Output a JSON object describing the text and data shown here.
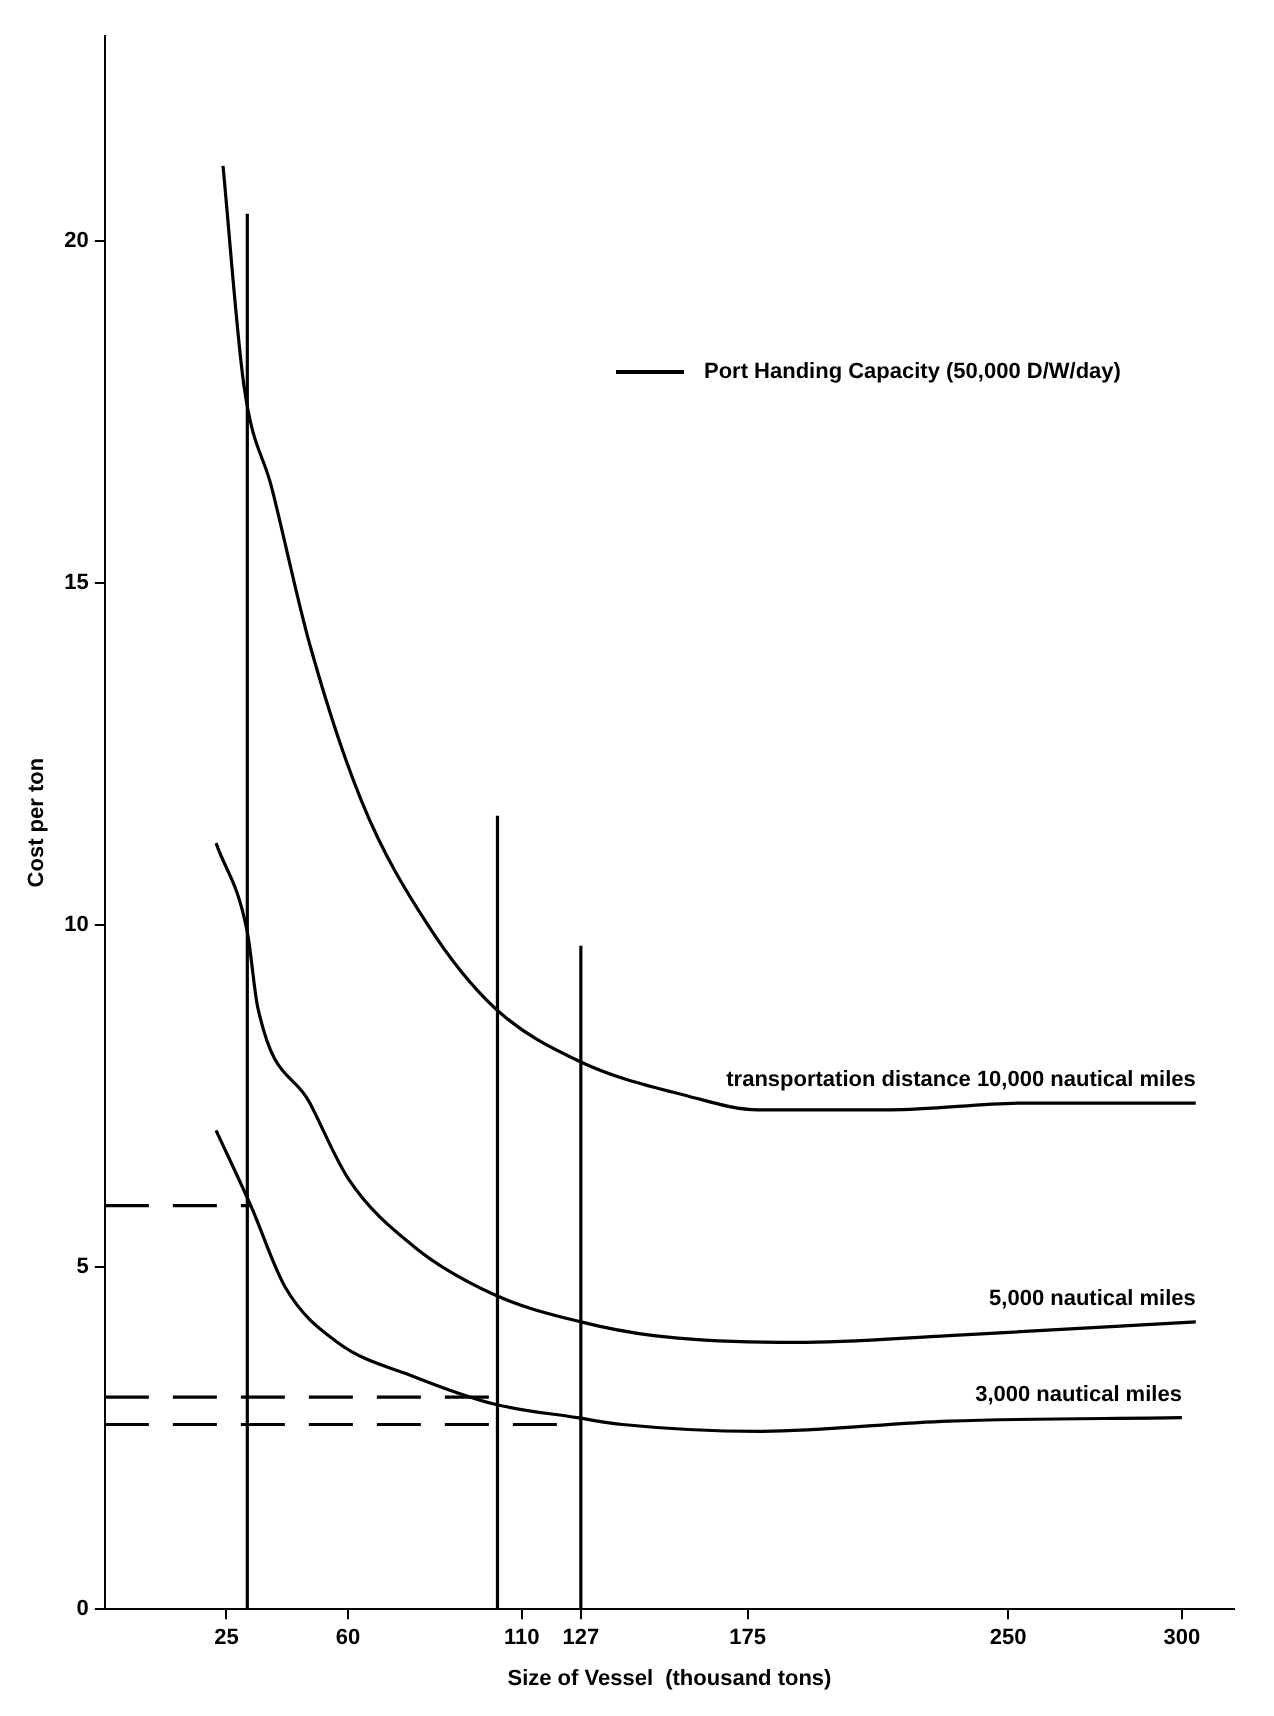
{
  "chart_data": {
    "type": "line",
    "xlabel": "Size of Vessel  (thousand tons)",
    "ylabel": "Cost per ton",
    "xlim": [
      -10,
      315
    ],
    "xticks": [
      25,
      60,
      110,
      127,
      175,
      250,
      300
    ],
    "ylim": [
      0,
      23
    ],
    "yticks": [
      0,
      5,
      10,
      15,
      20
    ],
    "grid": false,
    "legend": false,
    "marker": "none",
    "annotations": [
      "Port Handing Capacity (50,000 D/W/day)"
    ],
    "series": [
      {
        "name": "transportation distance 10,000 nautical miles",
        "color": "#000000",
        "x": [
          24,
          30,
          38,
          49,
          64,
          83,
          102,
          127,
          158,
          178,
          216,
          255,
          304
        ],
        "values": [
          21.1,
          17.9,
          16.4,
          14.1,
          11.8,
          10.0,
          8.8,
          8.0,
          7.5,
          7.3,
          7.3,
          7.4,
          7.4
        ]
      },
      {
        "name": "5,000 nautical miles",
        "color": "#000000",
        "x": [
          22,
          31,
          34,
          49,
          60,
          79,
          102,
          127,
          148,
          189,
          233,
          304
        ],
        "values": [
          11.2,
          9.9,
          8.8,
          7.4,
          6.3,
          5.3,
          4.6,
          4.2,
          4.0,
          3.9,
          4.0,
          4.2
        ]
      },
      {
        "name": "3,000 nautical miles",
        "color": "#000000",
        "x": [
          22,
          32,
          42,
          57,
          79,
          102,
          126,
          139,
          178,
          233,
          300
        ],
        "values": [
          7.0,
          5.9,
          4.7,
          3.9,
          3.4,
          3.0,
          2.8,
          2.7,
          2.6,
          2.75,
          2.8
        ]
      },
      {
        "color": "#000000",
        "x": [
          31,
          31
        ],
        "values": [
          0,
          20.4
        ]
      },
      {
        "color": "#000000",
        "x": [
          103,
          103
        ],
        "values": [
          0,
          11.6
        ]
      },
      {
        "color": "#000000",
        "x": [
          127,
          127
        ],
        "values": [
          0,
          9.7
        ]
      },
      {
        "color": "#000000",
        "line_style": "dashed",
        "x": [
          -10,
          32
        ],
        "values": [
          5.9,
          5.9
        ]
      },
      {
        "color": "#000000",
        "line_style": "dashed",
        "x": [
          -10,
          102
        ],
        "values": [
          3.1,
          3.1
        ]
      },
      {
        "color": "#000000",
        "line_style": "dashed",
        "x": [
          -10,
          126
        ],
        "values": [
          2.7,
          2.7
        ]
      }
    ]
  }
}
